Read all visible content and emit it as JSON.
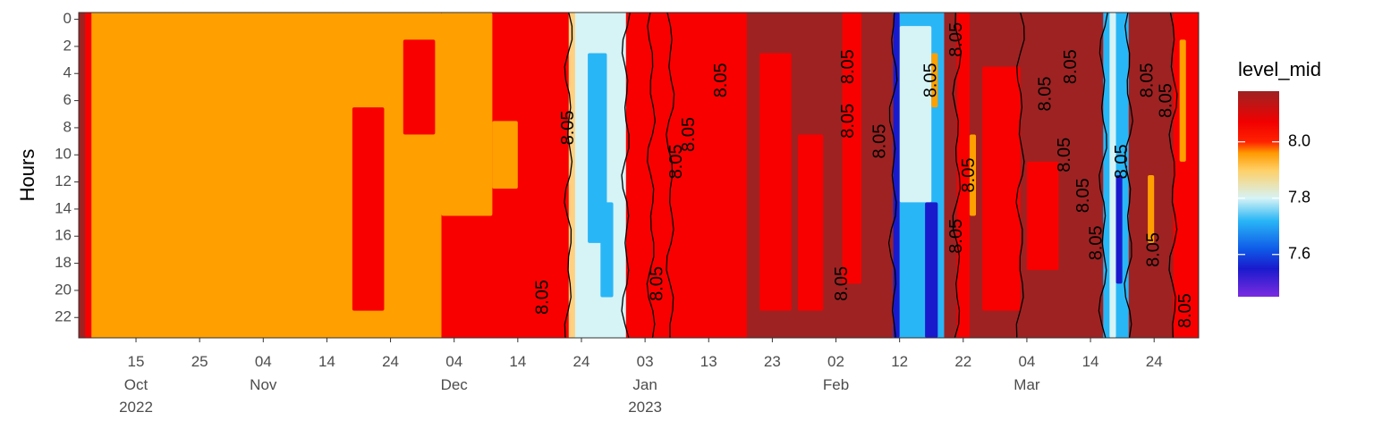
{
  "chart_data": {
    "type": "heatmap",
    "title": "",
    "xlabel": "",
    "ylabel": "Hours",
    "x_range": [
      "2022-10-06",
      "2023-03-31"
    ],
    "y_range": [
      0,
      23
    ],
    "y_reversed": true,
    "x_ticks": [
      {
        "date": "2022-10-15",
        "day": "15",
        "month": "Oct",
        "year": "2022"
      },
      {
        "date": "2022-10-25",
        "day": "25",
        "month": "",
        "year": ""
      },
      {
        "date": "2022-11-04",
        "day": "04",
        "month": "Nov",
        "year": ""
      },
      {
        "date": "2022-11-14",
        "day": "14",
        "month": "",
        "year": ""
      },
      {
        "date": "2022-11-24",
        "day": "24",
        "month": "",
        "year": ""
      },
      {
        "date": "2022-12-04",
        "day": "04",
        "month": "Dec",
        "year": ""
      },
      {
        "date": "2022-12-14",
        "day": "14",
        "month": "",
        "year": ""
      },
      {
        "date": "2022-12-24",
        "day": "24",
        "month": "",
        "year": ""
      },
      {
        "date": "2023-01-03",
        "day": "03",
        "month": "Jan",
        "year": "2023"
      },
      {
        "date": "2023-01-13",
        "day": "13",
        "month": "",
        "year": ""
      },
      {
        "date": "2023-01-23",
        "day": "23",
        "month": "",
        "year": ""
      },
      {
        "date": "2023-02-02",
        "day": "02",
        "month": "Feb",
        "year": ""
      },
      {
        "date": "2023-02-12",
        "day": "12",
        "month": "",
        "year": ""
      },
      {
        "date": "2023-02-22",
        "day": "22",
        "month": "",
        "year": ""
      },
      {
        "date": "2023-03-04",
        "day": "04",
        "month": "Mar",
        "year": ""
      },
      {
        "date": "2023-03-14",
        "day": "14",
        "month": "",
        "year": ""
      },
      {
        "date": "2023-03-24",
        "day": "24",
        "month": "",
        "year": ""
      }
    ],
    "y_ticks": [
      0,
      2,
      4,
      6,
      8,
      10,
      12,
      14,
      16,
      18,
      20,
      22
    ],
    "legend": {
      "title": "level_mid",
      "placement": "right",
      "range": [
        7.45,
        8.18
      ],
      "ticks": [
        7.6,
        7.8,
        8.0
      ],
      "tick_labels": [
        "7.6",
        "7.8",
        "8.0"
      ],
      "colors": [
        {
          "at": 7.45,
          "color": "#7b2be0"
        },
        {
          "at": 7.55,
          "color": "#1a1acd"
        },
        {
          "at": 7.62,
          "color": "#0f5be8"
        },
        {
          "at": 7.72,
          "color": "#29b6f6"
        },
        {
          "at": 7.8,
          "color": "#d6f3f6"
        },
        {
          "at": 7.9,
          "color": "#ffcf66"
        },
        {
          "at": 7.96,
          "color": "#ff9a00"
        },
        {
          "at": 8.0,
          "color": "#ff2200"
        },
        {
          "at": 8.07,
          "color": "#f20000"
        },
        {
          "at": 8.18,
          "color": "#9e2222"
        }
      ]
    },
    "contour_level": 8.05,
    "contour_label": "8.05",
    "bands": [
      {
        "start": "2022-10-06",
        "end": "2022-10-07",
        "color": "#9e2222"
      },
      {
        "start": "2022-10-07",
        "end": "2022-10-08",
        "color": "#f80000"
      },
      {
        "start": "2022-10-08",
        "end": "2022-11-21",
        "color": "#ffa000"
      },
      {
        "start": "2022-11-21",
        "end": "2022-12-02",
        "color": "#ffa000"
      },
      {
        "start": "2022-12-02",
        "end": "2022-12-22",
        "color": "#f80000"
      },
      {
        "start": "2022-12-22",
        "end": "2022-12-23",
        "color": "#ffd080"
      },
      {
        "start": "2022-12-23",
        "end": "2022-12-31",
        "color": "#d6f3f6"
      },
      {
        "start": "2022-12-31",
        "end": "2023-01-19",
        "color": "#f80000"
      },
      {
        "start": "2023-01-19",
        "end": "2023-02-01",
        "color": "#9e2222"
      },
      {
        "start": "2023-02-01",
        "end": "2023-02-11",
        "color": "#9e2222"
      },
      {
        "start": "2023-02-11",
        "end": "2023-02-19",
        "color": "#29b6f6"
      },
      {
        "start": "2023-02-19",
        "end": "2023-02-21",
        "color": "#9e2222"
      },
      {
        "start": "2023-02-21",
        "end": "2023-02-23",
        "color": "#f80000"
      },
      {
        "start": "2023-02-23",
        "end": "2023-03-16",
        "color": "#9e2222"
      },
      {
        "start": "2023-03-16",
        "end": "2023-03-20",
        "color": "#29b6f6"
      },
      {
        "start": "2023-03-20",
        "end": "2023-03-27",
        "color": "#9e2222"
      },
      {
        "start": "2023-03-27",
        "end": "2023-03-31",
        "color": "#f80000"
      }
    ],
    "patches": [
      {
        "start": "2022-11-21",
        "end": "2022-12-02",
        "h0": 0,
        "h1": 23,
        "color": "#ffa000"
      },
      {
        "start": "2022-11-18",
        "end": "2022-11-23",
        "h0": 7,
        "h1": 21,
        "color": "#f80000"
      },
      {
        "start": "2022-11-26",
        "end": "2022-12-01",
        "h0": 2,
        "h1": 8,
        "color": "#f80000"
      },
      {
        "start": "2022-12-02",
        "end": "2022-12-10",
        "h0": 0,
        "h1": 14,
        "color": "#ffa000"
      },
      {
        "start": "2022-12-10",
        "end": "2022-12-14",
        "h0": 8,
        "h1": 12,
        "color": "#ffa000"
      },
      {
        "start": "2022-12-25",
        "end": "2022-12-28",
        "h0": 3,
        "h1": 16,
        "color": "#29b6f6"
      },
      {
        "start": "2022-12-27",
        "end": "2022-12-29",
        "h0": 14,
        "h1": 20,
        "color": "#29b6f6"
      },
      {
        "start": "2023-01-21",
        "end": "2023-01-26",
        "h0": 3,
        "h1": 21,
        "color": "#f80000"
      },
      {
        "start": "2023-01-27",
        "end": "2023-01-31",
        "h0": 9,
        "h1": 21,
        "color": "#f80000"
      },
      {
        "start": "2023-02-03",
        "end": "2023-02-06",
        "h0": 0,
        "h1": 19,
        "color": "#f80000"
      },
      {
        "start": "2023-02-12",
        "end": "2023-02-17",
        "h0": 1,
        "h1": 13,
        "color": "#d6f3f6"
      },
      {
        "start": "2023-02-11",
        "end": "2023-02-12",
        "h0": 0,
        "h1": 23,
        "color": "#1a1acd"
      },
      {
        "start": "2023-02-16",
        "end": "2023-02-18",
        "h0": 14,
        "h1": 23,
        "color": "#1a1acd"
      },
      {
        "start": "2023-02-17",
        "end": "2023-02-18",
        "h0": 3,
        "h1": 6,
        "color": "#ffa000"
      },
      {
        "start": "2023-02-23",
        "end": "2023-02-24",
        "h0": 9,
        "h1": 14,
        "color": "#ffa000"
      },
      {
        "start": "2023-02-25",
        "end": "2023-03-03",
        "h0": 4,
        "h1": 21,
        "color": "#f80000"
      },
      {
        "start": "2023-03-04",
        "end": "2023-03-09",
        "h0": 11,
        "h1": 18,
        "color": "#f80000"
      },
      {
        "start": "2023-03-17",
        "end": "2023-03-18",
        "h0": 0,
        "h1": 23,
        "color": "#d6f3f6"
      },
      {
        "start": "2023-03-18",
        "end": "2023-03-19",
        "h0": 12,
        "h1": 19,
        "color": "#1a1acd"
      },
      {
        "start": "2023-03-23",
        "end": "2023-03-24",
        "h0": 12,
        "h1": 16,
        "color": "#ffa000"
      },
      {
        "start": "2023-03-28",
        "end": "2023-03-29",
        "h0": 2,
        "h1": 10,
        "color": "#ffa000"
      }
    ],
    "contours": [
      "2022-12-22",
      "2022-12-31",
      "2023-01-04",
      "2023-01-07",
      "2023-02-11",
      "2023-02-21",
      "2023-03-03",
      "2023-03-16",
      "2023-03-20",
      "2023-03-27"
    ],
    "contour_labels": [
      {
        "date": "2022-12-18",
        "hour": 20.5
      },
      {
        "date": "2022-12-22",
        "hour": 8
      },
      {
        "date": "2023-01-05",
        "hour": 19.5
      },
      {
        "date": "2023-01-08",
        "hour": 10.5
      },
      {
        "date": "2023-01-10",
        "hour": 8.5
      },
      {
        "date": "2023-01-15",
        "hour": 4.5
      },
      {
        "date": "2023-02-03",
        "hour": 19.5
      },
      {
        "date": "2023-02-04",
        "hour": 7.5
      },
      {
        "date": "2023-02-04",
        "hour": 3.5
      },
      {
        "date": "2023-02-09",
        "hour": 9
      },
      {
        "date": "2023-02-17",
        "hour": 4.5
      },
      {
        "date": "2023-02-21",
        "hour": 1.5
      },
      {
        "date": "2023-02-21",
        "hour": 16
      },
      {
        "date": "2023-02-23",
        "hour": 11.5
      },
      {
        "date": "2023-03-07",
        "hour": 5.5
      },
      {
        "date": "2023-03-10",
        "hour": 10
      },
      {
        "date": "2023-03-11",
        "hour": 3.5
      },
      {
        "date": "2023-03-13",
        "hour": 13
      },
      {
        "date": "2023-03-15",
        "hour": 16.5
      },
      {
        "date": "2023-03-19",
        "hour": 10.5
      },
      {
        "date": "2023-03-23",
        "hour": 4.5
      },
      {
        "date": "2023-03-24",
        "hour": 17
      },
      {
        "date": "2023-03-26",
        "hour": 6
      },
      {
        "date": "2023-03-29",
        "hour": 21.5
      }
    ]
  }
}
